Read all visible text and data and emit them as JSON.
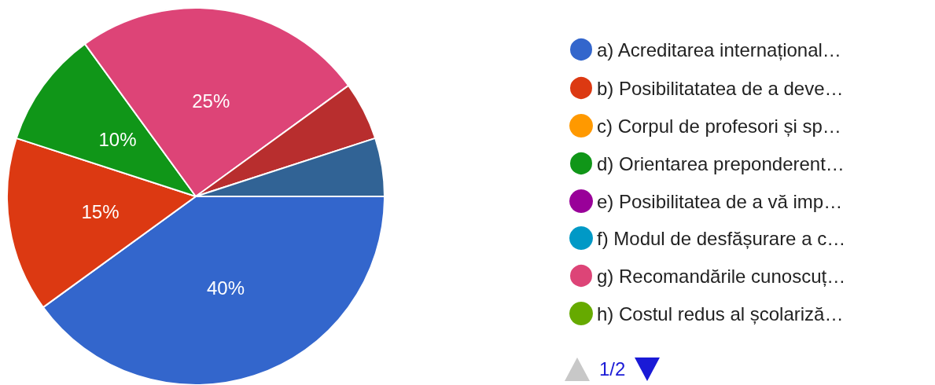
{
  "chart_data": {
    "type": "pie",
    "categories": [
      "a) Acreditarea internațional…",
      "b) Posibilitatatea de a deve…",
      "c) Corpul de profesori și sp…",
      "d) Orientarea preponderent…",
      "e) Posibilitatea de a vă imp…",
      "f) Modul de desfășurare a c…",
      "g) Recomandările cunoscuț…",
      "h) Costul redus al școlariză…",
      null,
      null
    ],
    "values": [
      40,
      15,
      0,
      10,
      0,
      0,
      25,
      0,
      5,
      5
    ],
    "colors": [
      "#3366cc",
      "#dc3912",
      "#ff9900",
      "#109618",
      "#990099",
      "#0099c6",
      "#dd4477",
      "#66aa00",
      "#b82e2e",
      "#316395"
    ],
    "value_labels": [
      "40%",
      "15%",
      null,
      "10%",
      null,
      null,
      "25%",
      null,
      null,
      null
    ],
    "legend": "right",
    "annotations": [
      "1/2"
    ]
  }
}
